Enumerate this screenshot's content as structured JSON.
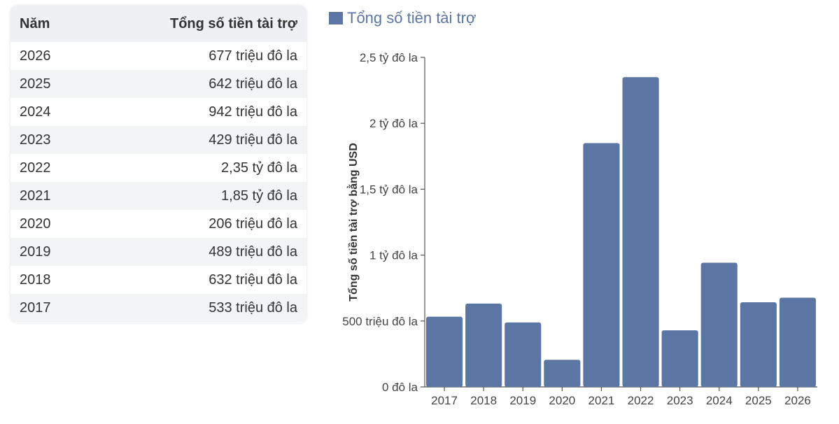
{
  "table": {
    "headers": [
      "Năm",
      "Tổng số tiền tài trợ"
    ],
    "rows": [
      [
        "2026",
        "677 triệu đô la"
      ],
      [
        "2025",
        "642 triệu đô la"
      ],
      [
        "2024",
        "942 triệu đô la"
      ],
      [
        "2023",
        "429 triệu đô la"
      ],
      [
        "2022",
        "2,35 tỷ đô la"
      ],
      [
        "2021",
        "1,85 tỷ đô la"
      ],
      [
        "2020",
        "206 triệu đô la"
      ],
      [
        "2019",
        "489 triệu đô la"
      ],
      [
        "2018",
        "632 triệu đô la"
      ],
      [
        "2017",
        "533 triệu đô la"
      ]
    ]
  },
  "chart_data": {
    "type": "bar",
    "categories": [
      "2017",
      "2018",
      "2019",
      "2020",
      "2021",
      "2022",
      "2023",
      "2024",
      "2025",
      "2026"
    ],
    "series": [
      {
        "name": "Tổng số tiền tài trợ",
        "values": [
          533,
          632,
          489,
          206,
          1850,
          2350,
          429,
          942,
          642,
          677
        ],
        "color": "#5b76a3"
      }
    ],
    "ylabel": "Tổng số tiền tài trợ bằng USD",
    "ylim": [
      0,
      2500
    ],
    "yticks": [
      {
        "value": 0,
        "label": "0 đô la"
      },
      {
        "value": 500,
        "label": "500 triệu đô la"
      },
      {
        "value": 1000,
        "label": "1 tỷ đô la"
      },
      {
        "value": 1500,
        "label": "1,5 tỷ đô la"
      },
      {
        "value": 2000,
        "label": "2 tỷ đô la"
      },
      {
        "value": 2500,
        "label": "2,5 tỷ đô la"
      }
    ],
    "legend_position": "top-left",
    "grid": false
  }
}
